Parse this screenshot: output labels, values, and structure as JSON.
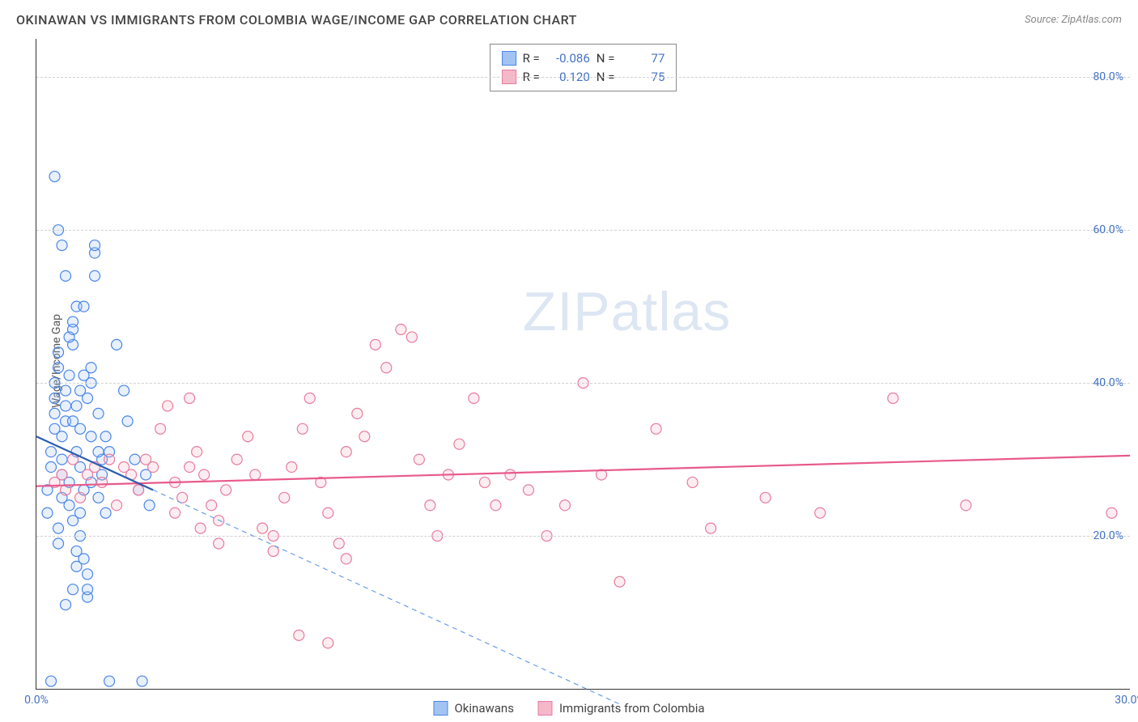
{
  "title": "OKINAWAN VS IMMIGRANTS FROM COLOMBIA WAGE/INCOME GAP CORRELATION CHART",
  "source": "Source: ZipAtlas.com",
  "ylabel": "Wage/Income Gap",
  "watermark": "ZIPatlas",
  "chart": {
    "type": "scatter",
    "background_color": "#ffffff",
    "grid_color": "#d0d0d0",
    "axis_color": "#333333",
    "text_color": "#444444",
    "tick_label_color": "#4472c4",
    "xlim": [
      0,
      30
    ],
    "ylim": [
      0,
      85
    ],
    "xtick_labels": [
      "0.0%",
      "30.0%"
    ],
    "xtick_positions": [
      0,
      30
    ],
    "ytick_labels": [
      "20.0%",
      "40.0%",
      "60.0%",
      "80.0%"
    ],
    "ytick_positions": [
      20,
      40,
      60,
      80
    ],
    "marker_radius": 6.5,
    "marker_fill_opacity": 0.25,
    "marker_stroke_width": 1.2,
    "trend_line_width": 2.2
  },
  "series": {
    "okinawans": {
      "label": "Okinawans",
      "color_stroke": "#4a86e8",
      "color_fill": "#a3c4f3",
      "R": "-0.086",
      "N": "77",
      "trend": {
        "x1": 0,
        "y1": 33,
        "x2": 3.2,
        "y2": 26,
        "extrap_x2": 16,
        "extrap_y2": -2
      },
      "points": [
        [
          0.3,
          23
        ],
        [
          0.3,
          26
        ],
        [
          0.4,
          29
        ],
        [
          0.4,
          31
        ],
        [
          0.5,
          34
        ],
        [
          0.5,
          36
        ],
        [
          0.5,
          38
        ],
        [
          0.5,
          40
        ],
        [
          0.6,
          42
        ],
        [
          0.6,
          44
        ],
        [
          0.6,
          21
        ],
        [
          0.6,
          19
        ],
        [
          0.7,
          25
        ],
        [
          0.7,
          28
        ],
        [
          0.7,
          30
        ],
        [
          0.7,
          33
        ],
        [
          0.8,
          35
        ],
        [
          0.8,
          37
        ],
        [
          0.8,
          39
        ],
        [
          0.9,
          41
        ],
        [
          0.9,
          27
        ],
        [
          0.9,
          24
        ],
        [
          1.0,
          22
        ],
        [
          1.0,
          45
        ],
        [
          1.0,
          47
        ],
        [
          1.1,
          50
        ],
        [
          1.1,
          31
        ],
        [
          1.2,
          34
        ],
        [
          1.2,
          29
        ],
        [
          1.3,
          26
        ],
        [
          1.3,
          17
        ],
        [
          1.4,
          15
        ],
        [
          1.4,
          38
        ],
        [
          1.5,
          40
        ],
        [
          1.5,
          42
        ],
        [
          1.6,
          54
        ],
        [
          1.6,
          57
        ],
        [
          1.6,
          58
        ],
        [
          1.7,
          36
        ],
        [
          1.8,
          30
        ],
        [
          1.8,
          28
        ],
        [
          1.9,
          33
        ],
        [
          2.0,
          31
        ],
        [
          2.0,
          1
        ],
        [
          0.4,
          1
        ],
        [
          0.5,
          67
        ],
        [
          0.6,
          60
        ],
        [
          0.7,
          58
        ],
        [
          0.8,
          54
        ],
        [
          0.8,
          11
        ],
        [
          1.0,
          13
        ],
        [
          1.1,
          16
        ],
        [
          1.1,
          18
        ],
        [
          1.2,
          20
        ],
        [
          1.2,
          23
        ],
        [
          1.4,
          12
        ],
        [
          1.4,
          13
        ],
        [
          2.2,
          45
        ],
        [
          2.4,
          39
        ],
        [
          2.5,
          35
        ],
        [
          2.7,
          30
        ],
        [
          2.8,
          26
        ],
        [
          2.9,
          1
        ],
        [
          3.0,
          28
        ],
        [
          3.1,
          24
        ],
        [
          1.0,
          35
        ],
        [
          1.1,
          37
        ],
        [
          1.2,
          39
        ],
        [
          1.3,
          41
        ],
        [
          1.5,
          27
        ],
        [
          1.7,
          25
        ],
        [
          1.9,
          23
        ],
        [
          0.9,
          46
        ],
        [
          1.0,
          48
        ],
        [
          1.3,
          50
        ],
        [
          1.5,
          33
        ],
        [
          1.7,
          31
        ]
      ]
    },
    "colombia": {
      "label": "Immigrants from Colombia",
      "color_stroke": "#e87ba0",
      "color_fill": "#f5b8c9",
      "R": "0.120",
      "N": "75",
      "trend": {
        "x1": 0,
        "y1": 26.5,
        "x2": 30,
        "y2": 30.5
      },
      "points": [
        [
          0.5,
          27
        ],
        [
          0.7,
          28
        ],
        [
          0.8,
          26
        ],
        [
          1.0,
          30
        ],
        [
          1.2,
          25
        ],
        [
          1.4,
          28
        ],
        [
          1.6,
          29
        ],
        [
          1.8,
          27
        ],
        [
          2.0,
          30
        ],
        [
          2.2,
          24
        ],
        [
          2.4,
          29
        ],
        [
          2.6,
          28
        ],
        [
          2.8,
          26
        ],
        [
          3.0,
          30
        ],
        [
          3.2,
          29
        ],
        [
          3.4,
          34
        ],
        [
          3.6,
          37
        ],
        [
          3.8,
          27
        ],
        [
          4.0,
          25
        ],
        [
          4.2,
          29
        ],
        [
          4.4,
          31
        ],
        [
          4.6,
          28
        ],
        [
          4.8,
          24
        ],
        [
          5.0,
          22
        ],
        [
          5.2,
          26
        ],
        [
          5.5,
          30
        ],
        [
          5.8,
          33
        ],
        [
          6.0,
          28
        ],
        [
          6.2,
          21
        ],
        [
          6.5,
          20
        ],
        [
          6.8,
          25
        ],
        [
          7.0,
          29
        ],
        [
          7.3,
          34
        ],
        [
          7.5,
          38
        ],
        [
          7.8,
          27
        ],
        [
          8.0,
          23
        ],
        [
          8.3,
          19
        ],
        [
          8.5,
          31
        ],
        [
          8.8,
          36
        ],
        [
          9.0,
          33
        ],
        [
          9.3,
          45
        ],
        [
          9.6,
          42
        ],
        [
          10.0,
          47
        ],
        [
          10.3,
          46
        ],
        [
          10.5,
          30
        ],
        [
          10.8,
          24
        ],
        [
          11.0,
          20
        ],
        [
          11.3,
          28
        ],
        [
          11.6,
          32
        ],
        [
          12.0,
          38
        ],
        [
          12.3,
          27
        ],
        [
          12.6,
          24
        ],
        [
          13.0,
          28
        ],
        [
          13.5,
          26
        ],
        [
          14.0,
          20
        ],
        [
          14.5,
          24
        ],
        [
          15.0,
          40
        ],
        [
          15.5,
          28
        ],
        [
          16.0,
          14
        ],
        [
          17.0,
          34
        ],
        [
          18.0,
          27
        ],
        [
          18.5,
          21
        ],
        [
          20.0,
          25
        ],
        [
          21.5,
          23
        ],
        [
          23.5,
          38
        ],
        [
          25.5,
          24
        ],
        [
          29.5,
          23
        ],
        [
          6.5,
          18
        ],
        [
          7.2,
          7
        ],
        [
          8.0,
          6
        ],
        [
          8.5,
          17
        ],
        [
          5.0,
          19
        ],
        [
          4.5,
          21
        ],
        [
          3.8,
          23
        ],
        [
          4.2,
          38
        ]
      ]
    }
  },
  "legend_stats": {
    "R_label": "R =",
    "N_label": "N ="
  }
}
